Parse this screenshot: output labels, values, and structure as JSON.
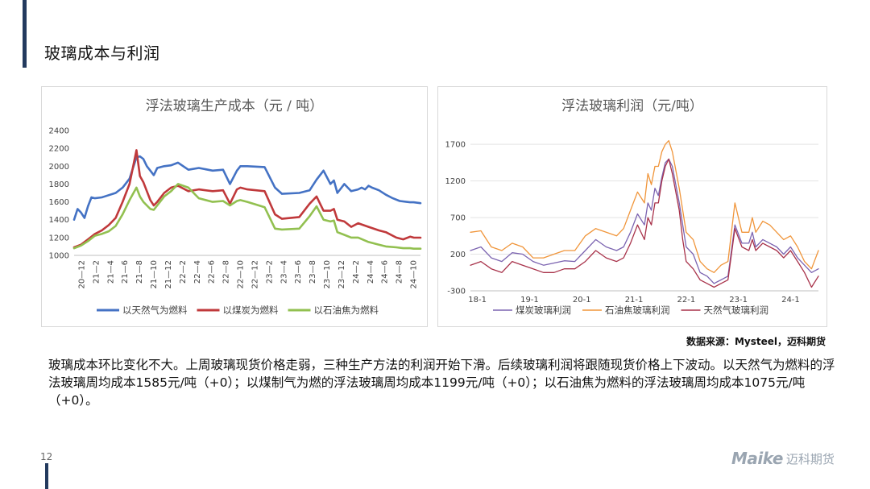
{
  "page": {
    "title": "玻璃成本与利润",
    "page_number": "12",
    "source": "数据来源：Mysteel，迈科期货",
    "body_text": "玻璃成本环比变化不大。上周玻璃现货价格走弱，三种生产方法的利润开始下滑。后续玻璃利润将跟随现货价格上下波动。以天然气为燃料的浮法玻璃周均成本1585元/吨（+0）；以煤制气为燃的浮法玻璃周均成本1199元/吨（+0）；以石油焦为燃料的浮法玻璃周均成本1075元/吨（+0）。",
    "logo_mark": "Maike",
    "logo_cn": "迈科期货"
  },
  "chart_data": [
    {
      "type": "line",
      "title": "浮法玻璃生产成本（元 / 吨）",
      "ylim": [
        1000,
        2400
      ],
      "yticks": [
        1000,
        1200,
        1400,
        1600,
        1800,
        2000,
        2200,
        2400
      ],
      "xlim": [
        0,
        100
      ],
      "categories": [
        "20-12",
        "21-2",
        "21-4",
        "21-6",
        "21-8",
        "21-10",
        "21-12",
        "22-2",
        "22-4",
        "22-6",
        "22-8",
        "22-10",
        "22-12",
        "23-2",
        "23-4",
        "23-6",
        "23-8",
        "23-10",
        "23-12",
        "24-2",
        "24-4",
        "24-6",
        "24-8",
        "24-10"
      ],
      "tick_labels": [
        "20—12",
        "21—2",
        "21—4",
        "21—6",
        "21—8",
        "21—10",
        "21—12",
        "22—2",
        "22—4",
        "22—6",
        "22—8",
        "22—10",
        "22—12",
        "23—2",
        "23—4",
        "23—6",
        "23—8",
        "23—10",
        "23—12",
        "24—2",
        "24—4",
        "24—6",
        "24—8",
        "24—10"
      ],
      "legend_position": "bottom",
      "grid": "horizontal",
      "series": [
        {
          "name": "以天然气为燃料",
          "color": "#4472c4",
          "x": [
            0,
            1,
            2,
            3,
            4,
            5,
            6,
            8,
            12,
            14,
            16,
            18,
            19,
            20,
            21,
            22,
            23,
            24,
            26,
            28,
            30,
            33,
            36,
            40,
            43,
            45,
            47,
            48,
            50,
            55,
            58,
            60,
            65,
            68,
            70,
            72,
            74,
            75,
            76,
            77,
            78,
            79,
            80,
            82,
            83,
            84,
            85,
            86,
            88,
            90,
            92,
            94,
            96,
            97,
            98,
            100
          ],
          "y": [
            1400,
            1520,
            1480,
            1420,
            1550,
            1650,
            1640,
            1650,
            1700,
            1760,
            1860,
            2100,
            2110,
            2080,
            2000,
            1950,
            1900,
            1980,
            2000,
            2010,
            2040,
            1960,
            1980,
            1950,
            1960,
            1800,
            1950,
            2000,
            2000,
            1990,
            1760,
            1690,
            1700,
            1730,
            1850,
            1950,
            1800,
            1840,
            1700,
            1750,
            1800,
            1760,
            1720,
            1740,
            1760,
            1740,
            1780,
            1760,
            1730,
            1680,
            1640,
            1610,
            1600,
            1595,
            1595,
            1585
          ]
        },
        {
          "name": "以煤炭为燃料",
          "color": "#c0393b",
          "x": [
            0,
            2,
            4,
            6,
            8,
            10,
            12,
            14,
            16,
            18,
            19,
            20,
            21,
            22,
            23,
            24,
            26,
            28,
            30,
            33,
            36,
            40,
            43,
            45,
            47,
            48,
            50,
            55,
            58,
            60,
            65,
            68,
            70,
            72,
            74,
            75,
            76,
            78,
            80,
            82,
            85,
            88,
            90,
            93,
            95,
            97,
            98,
            100
          ],
          "y": [
            1090,
            1120,
            1180,
            1240,
            1280,
            1340,
            1420,
            1600,
            1800,
            2180,
            1890,
            1820,
            1720,
            1620,
            1560,
            1600,
            1700,
            1760,
            1780,
            1720,
            1740,
            1720,
            1730,
            1580,
            1740,
            1760,
            1740,
            1720,
            1460,
            1410,
            1430,
            1580,
            1660,
            1500,
            1500,
            1520,
            1400,
            1380,
            1320,
            1360,
            1320,
            1280,
            1260,
            1200,
            1180,
            1210,
            1200,
            1199
          ]
        },
        {
          "name": "以石油焦为燃料",
          "color": "#92c050",
          "x": [
            0,
            2,
            4,
            6,
            8,
            10,
            12,
            14,
            16,
            18,
            19,
            20,
            21,
            22,
            23,
            24,
            26,
            28,
            30,
            33,
            36,
            40,
            43,
            45,
            47,
            48,
            50,
            55,
            58,
            60,
            65,
            68,
            70,
            72,
            74,
            75,
            76,
            78,
            80,
            82,
            85,
            88,
            90,
            93,
            95,
            97,
            98,
            100
          ],
          "y": [
            1080,
            1110,
            1160,
            1220,
            1240,
            1270,
            1330,
            1460,
            1620,
            1760,
            1660,
            1600,
            1560,
            1520,
            1510,
            1560,
            1660,
            1720,
            1800,
            1760,
            1640,
            1600,
            1610,
            1560,
            1610,
            1620,
            1600,
            1540,
            1300,
            1290,
            1300,
            1440,
            1550,
            1400,
            1380,
            1390,
            1260,
            1230,
            1200,
            1200,
            1150,
            1120,
            1100,
            1090,
            1080,
            1080,
            1075,
            1075
          ]
        }
      ]
    },
    {
      "type": "line",
      "title": "浮法玻璃利润（元/吨）",
      "ylim": [
        -300,
        1900
      ],
      "yticks": [
        -300,
        200,
        700,
        1200,
        1700
      ],
      "ytick_labels": [
        "-300",
        "200",
        "700",
        "1200",
        "1700"
      ],
      "xlim": [
        0,
        100
      ],
      "categories": [
        "18-1",
        "19-1",
        "20-1",
        "21-1",
        "22-1",
        "23-1",
        "24-1"
      ],
      "tick_labels": [
        "18-1",
        "19-1",
        "20-1",
        "21-1",
        "22-1",
        "23-1",
        "24-1"
      ],
      "tick_positions": [
        2,
        17,
        32,
        47,
        62,
        77,
        92
      ],
      "legend_position": "bottom",
      "grid": "horizontal",
      "series": [
        {
          "name": "煤炭玻璃利润",
          "color": "#7b63b0",
          "x": [
            0,
            3,
            6,
            9,
            12,
            15,
            18,
            21,
            24,
            27,
            30,
            33,
            36,
            39,
            42,
            44,
            46,
            48,
            50,
            51,
            52,
            53,
            54,
            55,
            56,
            57,
            58,
            60,
            61,
            62,
            64,
            66,
            68,
            70,
            72,
            74,
            76,
            78,
            80,
            81,
            82,
            84,
            86,
            88,
            90,
            92,
            94,
            96,
            98,
            100
          ],
          "y": [
            250,
            300,
            150,
            100,
            220,
            200,
            100,
            50,
            80,
            110,
            100,
            250,
            400,
            300,
            250,
            300,
            500,
            750,
            600,
            900,
            800,
            1100,
            1000,
            1250,
            1450,
            1500,
            1400,
            900,
            600,
            300,
            200,
            -50,
            -100,
            -200,
            -150,
            -100,
            600,
            350,
            350,
            500,
            300,
            400,
            350,
            300,
            200,
            300,
            150,
            50,
            -50,
            0
          ]
        },
        {
          "name": "石油焦玻璃利润",
          "color": "#f0953a",
          "x": [
            0,
            3,
            6,
            9,
            12,
            15,
            18,
            21,
            24,
            27,
            30,
            33,
            36,
            39,
            42,
            44,
            46,
            48,
            50,
            51,
            52,
            53,
            54,
            55,
            56,
            57,
            58,
            60,
            61,
            62,
            64,
            66,
            68,
            70,
            72,
            74,
            76,
            78,
            80,
            81,
            82,
            84,
            86,
            88,
            90,
            92,
            94,
            96,
            98,
            100
          ],
          "y": [
            500,
            520,
            300,
            250,
            350,
            300,
            150,
            150,
            200,
            250,
            250,
            450,
            550,
            500,
            450,
            550,
            800,
            1050,
            900,
            1300,
            1150,
            1400,
            1400,
            1600,
            1700,
            1750,
            1600,
            1100,
            800,
            500,
            400,
            100,
            0,
            -50,
            50,
            100,
            900,
            500,
            500,
            700,
            500,
            650,
            600,
            500,
            400,
            450,
            300,
            100,
            0,
            250
          ]
        },
        {
          "name": "天然气玻璃利润",
          "color": "#a8324a",
          "x": [
            0,
            3,
            6,
            9,
            12,
            15,
            18,
            21,
            24,
            27,
            30,
            33,
            36,
            39,
            42,
            44,
            46,
            48,
            50,
            51,
            52,
            53,
            54,
            55,
            56,
            57,
            58,
            60,
            61,
            62,
            64,
            66,
            68,
            70,
            72,
            74,
            76,
            78,
            80,
            81,
            82,
            84,
            86,
            88,
            90,
            92,
            94,
            96,
            98,
            100
          ],
          "y": [
            50,
            100,
            0,
            -50,
            100,
            50,
            0,
            -50,
            -50,
            0,
            0,
            100,
            250,
            150,
            100,
            150,
            350,
            600,
            400,
            700,
            600,
            900,
            900,
            1200,
            1400,
            1500,
            1300,
            800,
            400,
            100,
            0,
            -150,
            -200,
            -250,
            -200,
            -150,
            550,
            300,
            250,
            400,
            250,
            350,
            300,
            250,
            150,
            250,
            100,
            -50,
            -250,
            -100
          ]
        }
      ]
    }
  ]
}
